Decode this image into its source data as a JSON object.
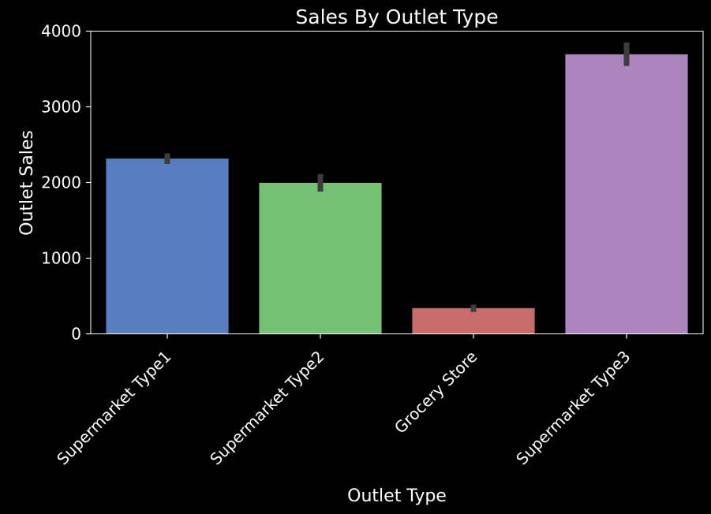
{
  "chart_data": {
    "type": "bar",
    "title": "Sales By Outlet Type",
    "xlabel": "Outlet Type",
    "ylabel": "Outlet Sales",
    "categories": [
      "Supermarket Type1",
      "Supermarket Type2",
      "Grocery Store",
      "Supermarket Type3"
    ],
    "values": [
      2316,
      1996,
      340,
      3694
    ],
    "error_bars": [
      [
        2245,
        2385
      ],
      [
        1880,
        2110
      ],
      [
        290,
        385
      ],
      [
        3540,
        3850
      ]
    ],
    "bar_colors": [
      "#5a7dc0",
      "#75c074",
      "#c86b6b",
      "#ab84bc"
    ],
    "error_bar_color": "#3d3d3d",
    "ylim": [
      0,
      4000
    ],
    "yticks": [
      0,
      1000,
      2000,
      3000,
      4000
    ],
    "ytick_labels": [
      "0",
      "1000",
      "2000",
      "3000",
      "4000"
    ],
    "grid": false,
    "background": "#000000",
    "foreground": "#ffffff"
  }
}
